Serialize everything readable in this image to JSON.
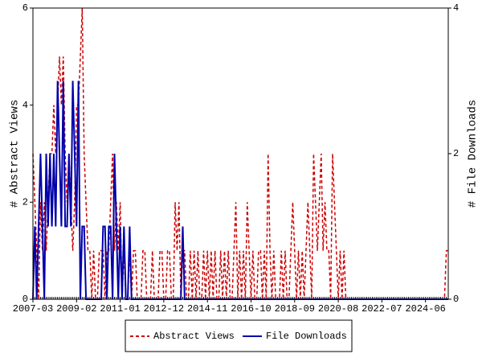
{
  "chart_data": {
    "type": "line",
    "y_label": "# Abstract Views",
    "y2_label": "# File Downloads",
    "x": [
      "2007-03",
      "2007-04",
      "2007-05",
      "2007-06",
      "2007-07",
      "2007-08",
      "2007-09",
      "2007-10",
      "2007-11",
      "2007-12",
      "2008-01",
      "2008-02",
      "2008-03",
      "2008-04",
      "2008-05",
      "2008-06",
      "2008-07",
      "2008-08",
      "2008-09",
      "2008-10",
      "2008-11",
      "2008-12",
      "2009-01",
      "2009-02",
      "2009-03",
      "2009-04",
      "2009-05",
      "2009-06",
      "2009-07",
      "2009-08",
      "2009-09",
      "2009-10",
      "2009-11",
      "2009-12",
      "2010-01",
      "2010-02",
      "2010-03",
      "2010-04",
      "2010-05",
      "2010-06",
      "2010-07",
      "2010-08",
      "2010-09",
      "2010-10",
      "2010-11",
      "2010-12",
      "2011-01",
      "2011-02",
      "2011-03",
      "2011-04",
      "2011-05",
      "2011-06",
      "2011-07",
      "2011-08",
      "2011-09",
      "2011-10",
      "2011-11",
      "2011-12",
      "2012-01",
      "2012-02",
      "2012-03",
      "2012-04",
      "2012-05",
      "2012-06",
      "2012-07",
      "2012-08",
      "2012-09",
      "2012-10",
      "2012-11",
      "2012-12",
      "2013-01",
      "2013-02",
      "2013-03",
      "2013-04",
      "2013-05",
      "2013-06",
      "2013-07",
      "2013-08",
      "2013-09",
      "2013-10",
      "2013-11",
      "2013-12",
      "2014-01",
      "2014-02",
      "2014-03",
      "2014-04",
      "2014-05",
      "2014-06",
      "2014-07",
      "2014-08",
      "2014-09",
      "2014-10",
      "2014-11",
      "2014-12",
      "2015-01",
      "2015-02",
      "2015-03",
      "2015-04",
      "2015-05",
      "2015-06",
      "2015-07",
      "2015-08",
      "2015-09",
      "2015-10",
      "2015-11",
      "2015-12",
      "2016-01",
      "2016-02",
      "2016-03",
      "2016-04",
      "2016-05",
      "2016-06",
      "2016-07",
      "2016-08",
      "2016-09",
      "2016-10",
      "2016-11",
      "2016-12",
      "2017-01",
      "2017-02",
      "2017-03",
      "2017-04",
      "2017-05",
      "2017-06",
      "2017-07",
      "2017-08",
      "2017-09",
      "2017-10",
      "2017-11",
      "2017-12",
      "2018-01",
      "2018-02",
      "2018-03",
      "2018-04",
      "2018-05",
      "2018-06",
      "2018-07",
      "2018-08",
      "2018-09",
      "2018-10",
      "2018-11",
      "2018-12",
      "2019-01",
      "2019-02",
      "2019-03",
      "2019-04",
      "2019-05",
      "2019-06",
      "2019-07",
      "2019-08",
      "2019-09",
      "2019-10",
      "2019-11",
      "2019-12",
      "2020-01",
      "2020-02",
      "2020-03",
      "2020-04",
      "2020-05",
      "2020-06",
      "2020-07",
      "2020-08",
      "2020-09",
      "2020-10",
      "2020-11",
      "2020-12",
      "2021-01",
      "2021-02",
      "2021-03",
      "2021-04",
      "2021-05",
      "2021-06",
      "2021-07",
      "2021-08",
      "2021-09",
      "2021-10",
      "2021-11",
      "2021-12",
      "2022-01",
      "2022-02",
      "2022-03",
      "2022-04",
      "2022-05",
      "2022-06",
      "2022-07",
      "2022-08",
      "2022-09",
      "2022-10",
      "2022-11",
      "2022-12",
      "2023-01",
      "2023-02",
      "2023-03",
      "2023-04",
      "2023-05",
      "2023-06",
      "2023-07",
      "2023-08",
      "2023-09",
      "2023-10",
      "2023-11",
      "2023-12",
      "2024-01",
      "2024-02",
      "2024-03",
      "2024-04",
      "2024-05",
      "2024-06",
      "2024-07",
      "2024-08",
      "2024-09",
      "2024-10",
      "2024-11",
      "2024-12",
      "2025-01",
      "2025-02",
      "2025-03",
      "2025-04",
      "2025-05",
      "2025-06"
    ],
    "xticks": [
      "2007-03",
      "2009-02",
      "2011-01",
      "2012-12",
      "2014-11",
      "2016-10",
      "2018-09",
      "2020-08",
      "2022-07",
      "2024-06"
    ],
    "ylim": [
      0,
      6
    ],
    "yticks": [
      0,
      2,
      4,
      6
    ],
    "y2lim": [
      0,
      4
    ],
    "y2ticks": [
      0,
      2,
      4
    ],
    "legend": "bottom",
    "series": [
      {
        "name": "Abstract Views",
        "color": "#cc0000",
        "dash": true,
        "values": [
          3,
          2,
          1,
          0,
          2,
          1,
          2,
          1,
          2,
          3,
          3,
          4,
          3,
          4,
          5,
          4,
          5,
          3,
          2,
          3,
          2,
          1,
          2,
          4,
          4,
          5,
          6,
          3,
          2,
          1,
          1,
          0,
          1,
          0,
          0,
          1,
          1,
          1,
          0,
          1,
          1,
          2,
          3,
          1,
          2,
          1,
          2,
          0,
          1,
          0,
          0,
          1,
          0,
          1,
          1,
          0,
          0,
          0,
          1,
          1,
          0,
          0,
          0,
          1,
          0,
          0,
          0,
          1,
          1,
          0,
          0,
          1,
          1,
          0,
          0,
          2,
          1,
          2,
          0,
          1,
          1,
          0,
          0,
          1,
          0,
          1,
          0,
          1,
          0,
          0,
          1,
          0,
          1,
          0,
          1,
          0,
          1,
          0,
          0,
          1,
          0,
          1,
          0,
          1,
          0,
          0,
          1,
          2,
          0,
          1,
          0,
          1,
          0,
          2,
          1,
          0,
          1,
          0,
          0,
          1,
          1,
          0,
          1,
          0,
          3,
          1,
          0,
          1,
          0,
          0,
          0,
          1,
          0,
          1,
          0,
          0,
          1,
          2,
          1,
          0,
          1,
          0,
          1,
          0,
          1,
          2,
          1,
          0,
          3,
          2,
          1,
          2,
          3,
          1,
          2,
          1,
          1,
          0,
          3,
          2,
          1,
          0,
          1,
          0,
          1,
          0,
          0,
          0,
          0,
          0,
          0,
          0,
          0,
          0,
          0,
          0,
          0,
          0,
          0,
          0,
          0,
          0,
          0,
          0,
          0,
          0,
          0,
          0,
          0,
          0,
          0,
          0,
          0,
          0,
          0,
          0,
          0,
          0,
          0,
          0,
          0,
          0,
          0,
          0,
          0,
          0,
          0,
          0,
          0,
          0,
          0,
          0,
          0,
          0,
          0,
          0,
          0,
          0,
          1,
          1
        ]
      },
      {
        "name": "File Downloads",
        "color": "#0000aa",
        "dash": false,
        "axis": "y2",
        "values": [
          0,
          1,
          0,
          1,
          2,
          1,
          0,
          2,
          1,
          2,
          1,
          2,
          1,
          3,
          2,
          1,
          3,
          1,
          1,
          2,
          1,
          3,
          2,
          1,
          3,
          0,
          1,
          1,
          0,
          0,
          0,
          0,
          0,
          0,
          0,
          0,
          0,
          1,
          1,
          0,
          1,
          1,
          0,
          2,
          1,
          0,
          1,
          0,
          1,
          0,
          0,
          1,
          0,
          0,
          0,
          0,
          0,
          0,
          0,
          0,
          0,
          0,
          0,
          0,
          0,
          0,
          0,
          0,
          0,
          0,
          0,
          0,
          0,
          0,
          0,
          0,
          0,
          0,
          0,
          1,
          0,
          0,
          0,
          0,
          0,
          0,
          0,
          0,
          0,
          0,
          0,
          0,
          0,
          0,
          0,
          0,
          0,
          0,
          0,
          0,
          0,
          0,
          0,
          0,
          0,
          0,
          0,
          0,
          0,
          0,
          0,
          0,
          0,
          0,
          0,
          0,
          0,
          0,
          0,
          0,
          0,
          0,
          0,
          0,
          0,
          0,
          0,
          0,
          0,
          0,
          0,
          0,
          0,
          0,
          0,
          0,
          0,
          0,
          0,
          0,
          0,
          0,
          0,
          0,
          0,
          0,
          0,
          0,
          0,
          0,
          0,
          0,
          0,
          0,
          0,
          0,
          0,
          0,
          0,
          0,
          0,
          0,
          0,
          0,
          0,
          0,
          0,
          0,
          0,
          0,
          0,
          0,
          0,
          0,
          0,
          0,
          0,
          0,
          0,
          0,
          0,
          0,
          0,
          0,
          0,
          0,
          0,
          0,
          0,
          0,
          0,
          0,
          0,
          0,
          0,
          0,
          0,
          0,
          0,
          0,
          0,
          0,
          0,
          0,
          0,
          0,
          0,
          0,
          0,
          0,
          0,
          0,
          0,
          0,
          0,
          0,
          0,
          0,
          0,
          0
        ]
      }
    ]
  }
}
